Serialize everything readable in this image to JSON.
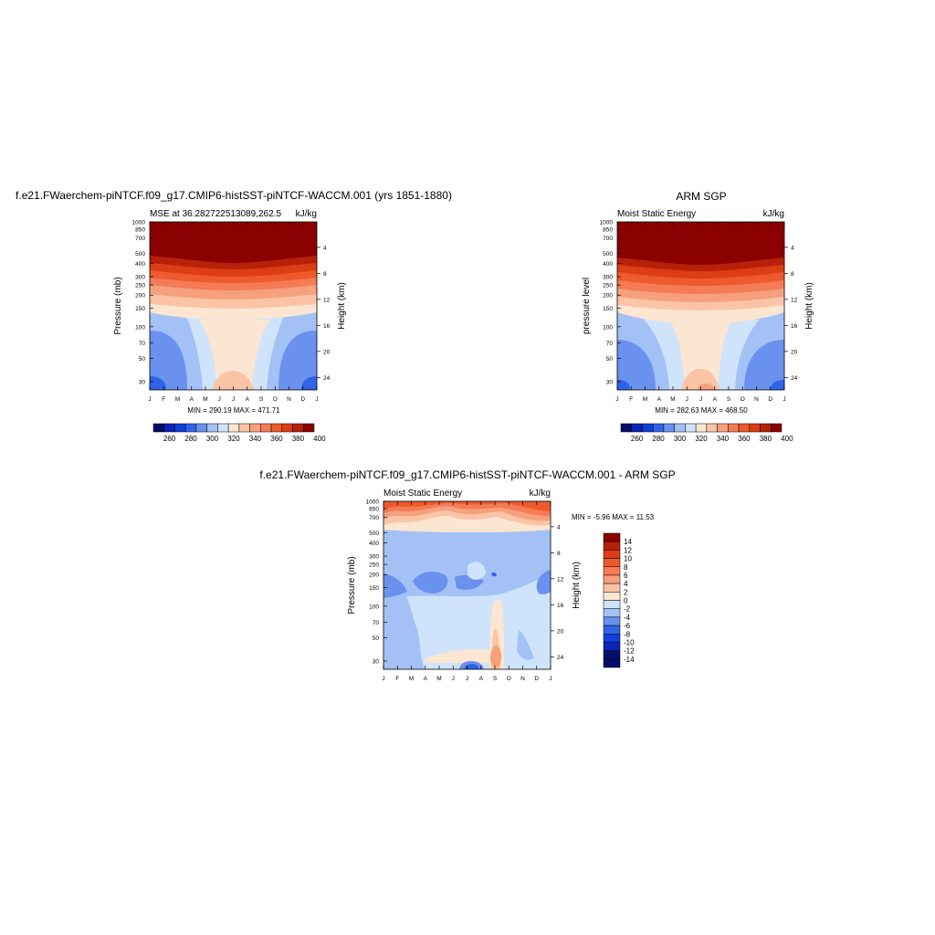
{
  "figure": {
    "title_top_left": "f.e21.FWaerchem-piNTCF.f09_g17.CMIP6-histSST-piNTCF-WACCM.001 (yrs 1851-1880)",
    "title_top_right": "ARM SGP",
    "title_bottom": "f.e21.FWaerchem-piNTCF.f09_g17.CMIP6-histSST-piNTCF-WACCM.001 - ARM SGP"
  },
  "chart_data": [
    {
      "type": "heatmap",
      "id": "model",
      "subtitle_left": "MSE at 36.282722513089,262.5",
      "subtitle_right": "kJ/kg",
      "ylabel": "Pressure (mb)",
      "ylabel_right": "Height (km)",
      "min_max_label": "MIN = 290.19 MAX = 471.71",
      "x": [
        "J",
        "F",
        "M",
        "A",
        "M",
        "J",
        "J",
        "A",
        "S",
        "O",
        "N",
        "D",
        "J"
      ],
      "pressure_ticks": [
        "30",
        "50",
        "70",
        "100",
        "150",
        "200",
        "250",
        "300",
        "400",
        "500",
        "700",
        "850",
        "1000"
      ],
      "height_ticks": [
        "24",
        "20",
        "16",
        "12",
        "8",
        "4"
      ],
      "colorbar_labels": [
        "260",
        "280",
        "300",
        "320",
        "340",
        "360",
        "380",
        "400"
      ],
      "colorbar_colors": [
        "#030e6b",
        "#0a23b8",
        "#0f3fd8",
        "#2f64e8",
        "#6a91ee",
        "#a4c1f5",
        "#cfe3fb",
        "#fce6d2",
        "#fbc4a6",
        "#f6a07e",
        "#f47b55",
        "#ee5a2d",
        "#dd3d14",
        "#b82109",
        "#8b0000"
      ],
      "min": 290.19,
      "max": 471.71
    },
    {
      "type": "heatmap",
      "id": "obs",
      "subtitle_left": "Moist Static Energy",
      "subtitle_right": "kJ/kg",
      "ylabel": "pressure level",
      "ylabel_right": "Height (km)",
      "min_max_label": "MIN = 282.63 MAX = 468.50",
      "x": [
        "J",
        "F",
        "M",
        "A",
        "M",
        "J",
        "J",
        "A",
        "S",
        "O",
        "N",
        "D",
        "J"
      ],
      "pressure_ticks": [
        "30",
        "50",
        "70",
        "100",
        "150",
        "200",
        "250",
        "300",
        "400",
        "500",
        "700",
        "850",
        "1000"
      ],
      "height_ticks": [
        "24",
        "20",
        "16",
        "12",
        "8",
        "4"
      ],
      "colorbar_labels": [
        "260",
        "280",
        "300",
        "320",
        "340",
        "360",
        "380",
        "400"
      ],
      "colorbar_colors": [
        "#030e6b",
        "#0a23b8",
        "#0f3fd8",
        "#2f64e8",
        "#6a91ee",
        "#a4c1f5",
        "#cfe3fb",
        "#fce6d2",
        "#fbc4a6",
        "#f6a07e",
        "#f47b55",
        "#ee5a2d",
        "#dd3d14",
        "#b82109",
        "#8b0000"
      ],
      "min": 282.63,
      "max": 468.5
    },
    {
      "type": "heatmap",
      "id": "diff",
      "subtitle_left": "Moist Static Energy",
      "subtitle_right": "kJ/kg",
      "ylabel": "Pressure (mb)",
      "ylabel_right": "Height (km)",
      "min_max_label": "MIN =  -5.96 MAX =  11.53",
      "x": [
        "J",
        "F",
        "M",
        "A",
        "M",
        "J",
        "J",
        "A",
        "S",
        "O",
        "N",
        "D",
        "J"
      ],
      "pressure_ticks": [
        "30",
        "50",
        "70",
        "100",
        "150",
        "200",
        "250",
        "300",
        "400",
        "500",
        "700",
        "850",
        "1000"
      ],
      "height_ticks": [
        "24",
        "20",
        "16",
        "12",
        "8",
        "4"
      ],
      "colorbar_labels": [
        "14",
        "12",
        "10",
        "8",
        "6",
        "4",
        "2",
        "0",
        "-2",
        "-4",
        "-6",
        "-8",
        "-10",
        "-12",
        "-14"
      ],
      "colorbar_colors": [
        "#8b0000",
        "#b82109",
        "#dd3d14",
        "#ee5a2d",
        "#f47b55",
        "#f6a07e",
        "#fbc4a6",
        "#fce6d2",
        "#cfe3fb",
        "#a4c1f5",
        "#6a91ee",
        "#2f64e8",
        "#0f3fd8",
        "#0a23b8",
        "#030e6b",
        "#030e6b"
      ],
      "min": -5.96,
      "max": 11.53
    }
  ]
}
